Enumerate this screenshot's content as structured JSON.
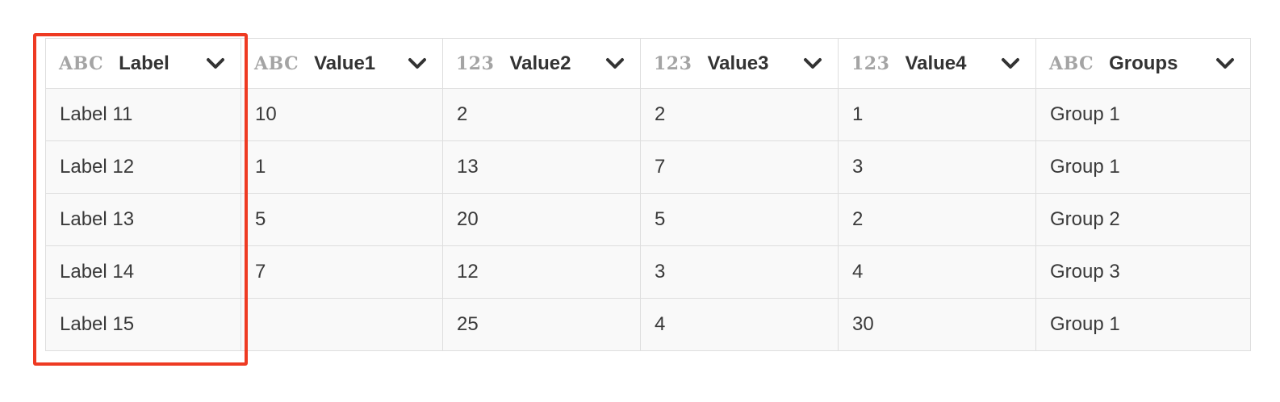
{
  "table": {
    "columns": [
      {
        "type": "ABC",
        "name": "Label"
      },
      {
        "type": "ABC",
        "name": "Value1"
      },
      {
        "type": "123",
        "name": "Value2"
      },
      {
        "type": "123",
        "name": "Value3"
      },
      {
        "type": "123",
        "name": "Value4"
      },
      {
        "type": "ABC",
        "name": "Groups"
      }
    ],
    "rows": [
      [
        "Label 11",
        "10",
        "2",
        "2",
        "1",
        "Group 1"
      ],
      [
        "Label 12",
        "1",
        "13",
        "7",
        "3",
        "Group 1"
      ],
      [
        "Label 13",
        "5",
        "20",
        "5",
        "2",
        "Group 2"
      ],
      [
        "Label 14",
        "7",
        "12",
        "3",
        "4",
        "Group 3"
      ],
      [
        "Label 15",
        "",
        "25",
        "4",
        "30",
        "Group 1"
      ]
    ]
  },
  "highlight": {
    "column": "Label",
    "color": "#ee3a22"
  },
  "icons": {
    "column_menu": "chevron-down-icon"
  }
}
